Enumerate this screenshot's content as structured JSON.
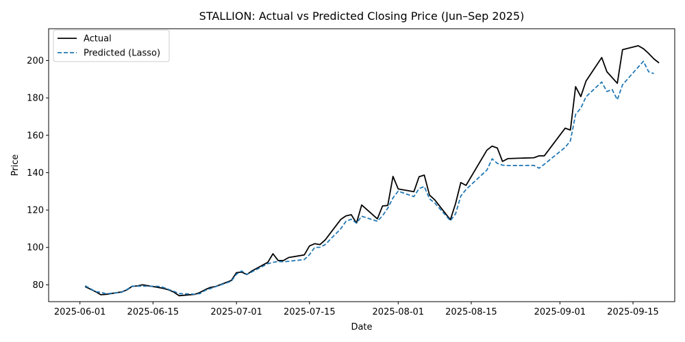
{
  "chart_data": {
    "type": "line",
    "title": "STALLION: Actual vs Predicted Closing Price (Jun–Sep 2025)",
    "xlabel": "Date",
    "ylabel": "Price",
    "xlim": [
      "2025-05-26",
      "2025-09-23"
    ],
    "ylim": [
      71,
      217
    ],
    "x_ticks": [
      "2025-06-01",
      "2025-06-15",
      "2025-07-01",
      "2025-07-15",
      "2025-08-01",
      "2025-08-15",
      "2025-09-01",
      "2025-09-15"
    ],
    "y_ticks": [
      80,
      100,
      120,
      140,
      160,
      180,
      200
    ],
    "grid": false,
    "legend_position": "upper-left",
    "series": [
      {
        "name": "Actual",
        "color": "#000000",
        "style": "solid",
        "points": [
          [
            "2025-06-02",
            79.0
          ],
          [
            "2025-06-03",
            77.7
          ],
          [
            "2025-06-04",
            76.3
          ],
          [
            "2025-06-05",
            74.7
          ],
          [
            "2025-06-06",
            74.9
          ],
          [
            "2025-06-09",
            76.2
          ],
          [
            "2025-06-10",
            77.3
          ],
          [
            "2025-06-11",
            79.2
          ],
          [
            "2025-06-12",
            79.4
          ],
          [
            "2025-06-13",
            80.0
          ],
          [
            "2025-06-16",
            78.6
          ],
          [
            "2025-06-17",
            78.1
          ],
          [
            "2025-06-18",
            77.3
          ],
          [
            "2025-06-19",
            76.1
          ],
          [
            "2025-06-20",
            74.2
          ],
          [
            "2025-06-23",
            74.9
          ],
          [
            "2025-06-24",
            75.9
          ],
          [
            "2025-06-25",
            77.4
          ],
          [
            "2025-06-26",
            78.6
          ],
          [
            "2025-06-27",
            79.1
          ],
          [
            "2025-06-30",
            82.3
          ],
          [
            "2025-07-01",
            86.5
          ],
          [
            "2025-07-02",
            86.8
          ],
          [
            "2025-07-03",
            85.5
          ],
          [
            "2025-07-04",
            87.5
          ],
          [
            "2025-07-07",
            92.0
          ],
          [
            "2025-07-08",
            96.6
          ],
          [
            "2025-07-09",
            93.0
          ],
          [
            "2025-07-10",
            93.0
          ],
          [
            "2025-07-11",
            94.6
          ],
          [
            "2025-07-14",
            96.0
          ],
          [
            "2025-07-15",
            100.8
          ],
          [
            "2025-07-16",
            102.0
          ],
          [
            "2025-07-17",
            101.5
          ],
          [
            "2025-07-18",
            104.0
          ],
          [
            "2025-07-21",
            115.0
          ],
          [
            "2025-07-22",
            116.9
          ],
          [
            "2025-07-23",
            117.5
          ],
          [
            "2025-07-24",
            113.0
          ],
          [
            "2025-07-25",
            122.7
          ],
          [
            "2025-07-28",
            115.3
          ],
          [
            "2025-07-29",
            122.2
          ],
          [
            "2025-07-30",
            122.5
          ],
          [
            "2025-07-31",
            138.0
          ],
          [
            "2025-08-01",
            131.3
          ],
          [
            "2025-08-04",
            129.8
          ],
          [
            "2025-08-05",
            137.8
          ],
          [
            "2025-08-06",
            138.7
          ],
          [
            "2025-08-07",
            128.0
          ],
          [
            "2025-08-08",
            125.5
          ],
          [
            "2025-08-11",
            114.8
          ],
          [
            "2025-08-12",
            123.5
          ],
          [
            "2025-08-13",
            134.7
          ],
          [
            "2025-08-14",
            133.2
          ],
          [
            "2025-08-18",
            152.0
          ],
          [
            "2025-08-19",
            154.2
          ],
          [
            "2025-08-20",
            153.2
          ],
          [
            "2025-08-21",
            146.0
          ],
          [
            "2025-08-22",
            147.5
          ],
          [
            "2025-08-27",
            148.0
          ],
          [
            "2025-08-28",
            149.0
          ],
          [
            "2025-08-29",
            149.0
          ],
          [
            "2025-09-02",
            163.8
          ],
          [
            "2025-09-03",
            162.8
          ],
          [
            "2025-09-04",
            186.0
          ],
          [
            "2025-09-05",
            180.7
          ],
          [
            "2025-09-06",
            189.0
          ],
          [
            "2025-09-09",
            201.6
          ],
          [
            "2025-09-10",
            194.0
          ],
          [
            "2025-09-12",
            187.8
          ],
          [
            "2025-09-13",
            205.8
          ],
          [
            "2025-09-16",
            207.9
          ],
          [
            "2025-09-17",
            206.3
          ],
          [
            "2025-09-18",
            203.8
          ],
          [
            "2025-09-19",
            200.9
          ],
          [
            "2025-09-20",
            198.7
          ]
        ]
      },
      {
        "name": "Predicted (Lasso)",
        "color": "#1f77b4",
        "style": "dashed",
        "points": [
          [
            "2025-06-02",
            79.5
          ],
          [
            "2025-06-03",
            78.0
          ],
          [
            "2025-06-04",
            76.3
          ],
          [
            "2025-06-05",
            76.0
          ],
          [
            "2025-06-06",
            75.2
          ],
          [
            "2025-06-09",
            76.0
          ],
          [
            "2025-06-10",
            77.5
          ],
          [
            "2025-06-11",
            79.3
          ],
          [
            "2025-06-12",
            79.3
          ],
          [
            "2025-06-13",
            79.3
          ],
          [
            "2025-06-16",
            79.2
          ],
          [
            "2025-06-17",
            78.6
          ],
          [
            "2025-06-18",
            77.5
          ],
          [
            "2025-06-19",
            76.5
          ],
          [
            "2025-06-20",
            75.3
          ],
          [
            "2025-06-23",
            75.0
          ],
          [
            "2025-06-24",
            75.3
          ],
          [
            "2025-06-25",
            77.0
          ],
          [
            "2025-06-26",
            78.0
          ],
          [
            "2025-06-27",
            79.0
          ],
          [
            "2025-06-30",
            81.9
          ],
          [
            "2025-07-01",
            85.7
          ],
          [
            "2025-07-02",
            87.4
          ],
          [
            "2025-07-03",
            85.6
          ],
          [
            "2025-07-04",
            87.0
          ],
          [
            "2025-07-07",
            91.3
          ],
          [
            "2025-07-08",
            92.0
          ],
          [
            "2025-07-09",
            92.5
          ],
          [
            "2025-07-10",
            92.3
          ],
          [
            "2025-07-11",
            92.6
          ],
          [
            "2025-07-14",
            93.5
          ],
          [
            "2025-07-15",
            96.1
          ],
          [
            "2025-07-16",
            100.0
          ],
          [
            "2025-07-17",
            100.1
          ],
          [
            "2025-07-18",
            101.5
          ],
          [
            "2025-07-21",
            110.0
          ],
          [
            "2025-07-22",
            114.0
          ],
          [
            "2025-07-23",
            115.1
          ],
          [
            "2025-07-24",
            113.0
          ],
          [
            "2025-07-25",
            116.7
          ],
          [
            "2025-07-28",
            114.0
          ],
          [
            "2025-07-29",
            117.0
          ],
          [
            "2025-07-30",
            121.0
          ],
          [
            "2025-07-31",
            126.5
          ],
          [
            "2025-08-01",
            130.1
          ],
          [
            "2025-08-04",
            127.2
          ],
          [
            "2025-08-05",
            131.5
          ],
          [
            "2025-08-06",
            132.6
          ],
          [
            "2025-08-07",
            126.0
          ],
          [
            "2025-08-08",
            123.8
          ],
          [
            "2025-08-11",
            114.3
          ],
          [
            "2025-08-12",
            118.0
          ],
          [
            "2025-08-13",
            127.5
          ],
          [
            "2025-08-14",
            131.0
          ],
          [
            "2025-08-18",
            141.4
          ],
          [
            "2025-08-19",
            147.4
          ],
          [
            "2025-08-20",
            145.0
          ],
          [
            "2025-08-21",
            144.0
          ],
          [
            "2025-08-22",
            143.8
          ],
          [
            "2025-08-27",
            143.9
          ],
          [
            "2025-08-28",
            142.4
          ],
          [
            "2025-08-29",
            144.5
          ],
          [
            "2025-09-02",
            153.5
          ],
          [
            "2025-09-03",
            157.0
          ],
          [
            "2025-09-04",
            171.2
          ],
          [
            "2025-09-05",
            174.5
          ],
          [
            "2025-09-06",
            180.6
          ],
          [
            "2025-09-09",
            188.5
          ],
          [
            "2025-09-10",
            183.4
          ],
          [
            "2025-09-11",
            184.5
          ],
          [
            "2025-09-12",
            179.0
          ],
          [
            "2025-09-13",
            187.0
          ],
          [
            "2025-09-16",
            196.5
          ],
          [
            "2025-09-17",
            199.6
          ],
          [
            "2025-09-18",
            194.0
          ],
          [
            "2025-09-19",
            193.0
          ]
        ]
      }
    ]
  }
}
